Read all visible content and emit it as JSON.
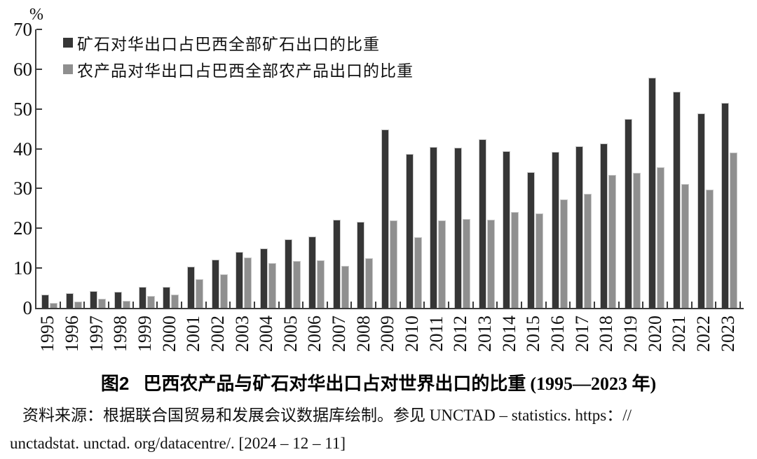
{
  "chart_data": {
    "type": "bar",
    "title": "",
    "unit": "%",
    "categories": [
      "1995",
      "1996",
      "1997",
      "1998",
      "1999",
      "2000",
      "2001",
      "2002",
      "2003",
      "2004",
      "2005",
      "2006",
      "2007",
      "2008",
      "2009",
      "2010",
      "2011",
      "2012",
      "2013",
      "2014",
      "2015",
      "2016",
      "2017",
      "2018",
      "2019",
      "2020",
      "2021",
      "2022",
      "2023"
    ],
    "series": [
      {
        "name": "矿石对华出口占巴西全部矿石出口的比重",
        "color": "#363636",
        "values": [
          3.4,
          3.7,
          4.2,
          4.1,
          5.3,
          5.3,
          10.4,
          12.2,
          14.1,
          15.0,
          17.2,
          18.0,
          22.2,
          21.6,
          44.9,
          38.7,
          40.4,
          40.2,
          42.4,
          39.4,
          34.1,
          39.3,
          40.6,
          41.3,
          47.5,
          57.8,
          54.3,
          48.9,
          51.6
        ]
      },
      {
        "name": "农产品对华出口占巴西全部农产品出口的比重",
        "color": "#8f8f8f",
        "values": [
          1.2,
          1.5,
          2.2,
          1.7,
          3.0,
          3.4,
          7.2,
          8.5,
          12.7,
          11.2,
          11.7,
          12.0,
          10.6,
          12.5,
          21.9,
          17.7,
          22.0,
          22.3,
          22.1,
          24.1,
          23.8,
          27.2,
          28.6,
          33.4,
          34.0,
          35.4,
          31.1,
          29.8,
          39.1
        ]
      }
    ],
    "ylim": [
      0,
      70
    ],
    "ytick_interval": 10,
    "grid": false,
    "legend_position": "top-left"
  },
  "caption": {
    "fig_label": "图2",
    "title": "巴西农产品与矿石对华出口占对世界出口的比重",
    "period": "(1995—2023 年)"
  },
  "source": {
    "line1": "资料来源：根据联合国贸易和发展会议数据库绘制。参见 UNCTAD – statistics. https：//",
    "line2": "unctadstat. unctad. org/datacentre/. [2024 – 12 – 11]"
  }
}
